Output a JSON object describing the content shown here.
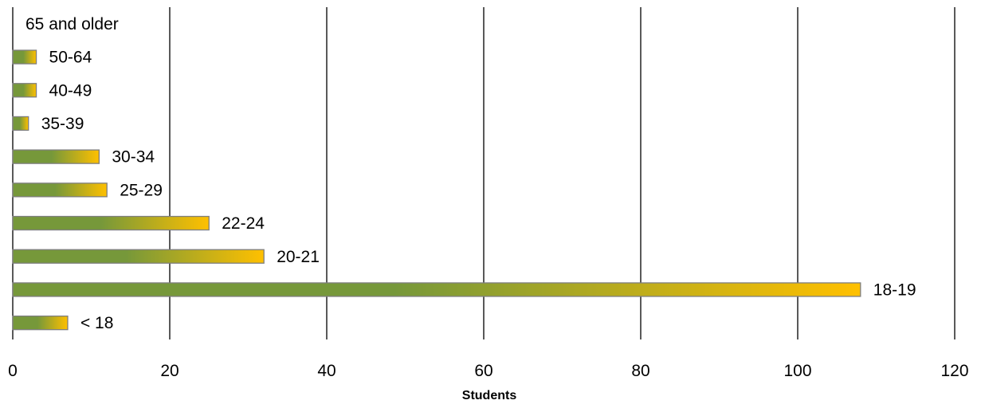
{
  "chart_data": {
    "type": "bar",
    "orientation": "horizontal",
    "title": "",
    "xlabel": "Students",
    "ylabel": "",
    "xlim": [
      0,
      120
    ],
    "x_ticks": [
      0,
      20,
      40,
      60,
      80,
      100,
      120
    ],
    "grid": "vertical major gridlines on",
    "legend": "none",
    "categories": [
      "< 18",
      "18-19",
      "20-21",
      "22-24",
      "25-29",
      "30-34",
      "35-39",
      "40-49",
      "50-64",
      "65 and older"
    ],
    "values": [
      7,
      108,
      32,
      25,
      12,
      11,
      2,
      3,
      3,
      0
    ],
    "colors": {
      "bar_gradient_start": "#76983a",
      "bar_gradient_end": "#ffc000",
      "bar_border": "#7f7f7f",
      "gridline": "#000000"
    }
  }
}
